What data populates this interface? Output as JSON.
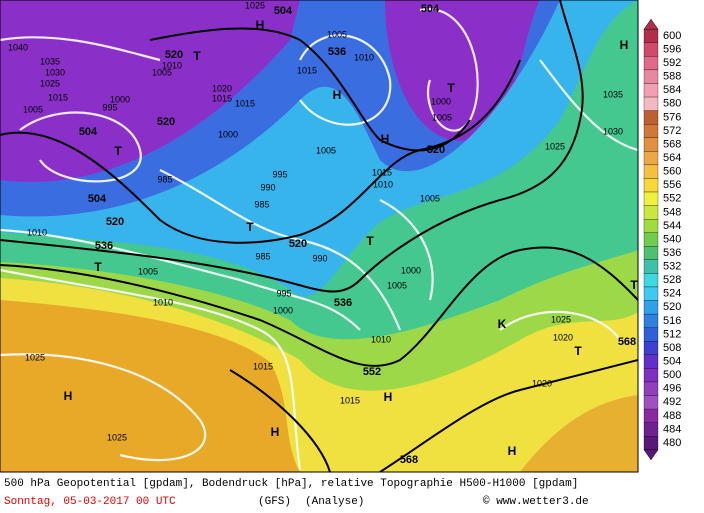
{
  "map": {
    "labels": [
      "1025",
      "504",
      "H",
      "1040",
      "520",
      "T",
      "1010",
      "1005",
      "536",
      "1005",
      "1010",
      "504",
      "1015",
      "H",
      "T",
      "1000",
      "1005",
      "1035",
      "1030",
      "1025",
      "1015",
      "1005",
      "995",
      "1000",
      "504",
      "T",
      "1020",
      "1015",
      "1015",
      "520",
      "1000",
      "H",
      "520",
      "1025",
      "1035",
      "1030",
      "H",
      "1005",
      "985",
      "995",
      "990",
      "1010",
      "1015",
      "1005",
      "985",
      "504",
      "520",
      "T",
      "520",
      "T",
      "1010",
      "536",
      "985",
      "990",
      "T",
      "1005",
      "1000",
      "995",
      "1005",
      "1000",
      "536",
      "1010",
      "1010",
      "K",
      "1025",
      "1020",
      "T",
      "T",
      "568",
      "552",
      "1025",
      "1015",
      "H",
      "1015",
      "H",
      "1020",
      "1025",
      "H",
      "568",
      "H"
    ]
  },
  "legend": {
    "levels": [
      600,
      596,
      592,
      588,
      584,
      580,
      576,
      572,
      568,
      564,
      560,
      556,
      552,
      548,
      544,
      540,
      536,
      532,
      528,
      524,
      520,
      516,
      512,
      508,
      504,
      500,
      496,
      492,
      488,
      484,
      480
    ],
    "colors": [
      "#b0304a",
      "#d04a6a",
      "#e06888",
      "#e888a0",
      "#f0a0b0",
      "#f4b8c0",
      "#c06030",
      "#d07838",
      "#e09040",
      "#eca848",
      "#f4c040",
      "#f8d838",
      "#f0f040",
      "#c8e840",
      "#a0dc40",
      "#70cc50",
      "#50c070",
      "#40c0a8",
      "#40d8e0",
      "#40c8f0",
      "#30a0e8",
      "#3080e0",
      "#3060d8",
      "#4040d0",
      "#6030c8",
      "#8030c0",
      "#9040b8",
      "#a050c0",
      "#8a2aa0",
      "#702090",
      "#581878"
    ]
  },
  "footer": {
    "line1": "500 hPa Geopotential [gpdam], Bodendruck [hPa], relative Topographie H500-H1000 [gpdam]",
    "date": "Sonntag, 05-03-2017  00 UTC",
    "model": "(GFS)",
    "run": "(Analyse)",
    "credit": "© www.wetter3.de"
  }
}
